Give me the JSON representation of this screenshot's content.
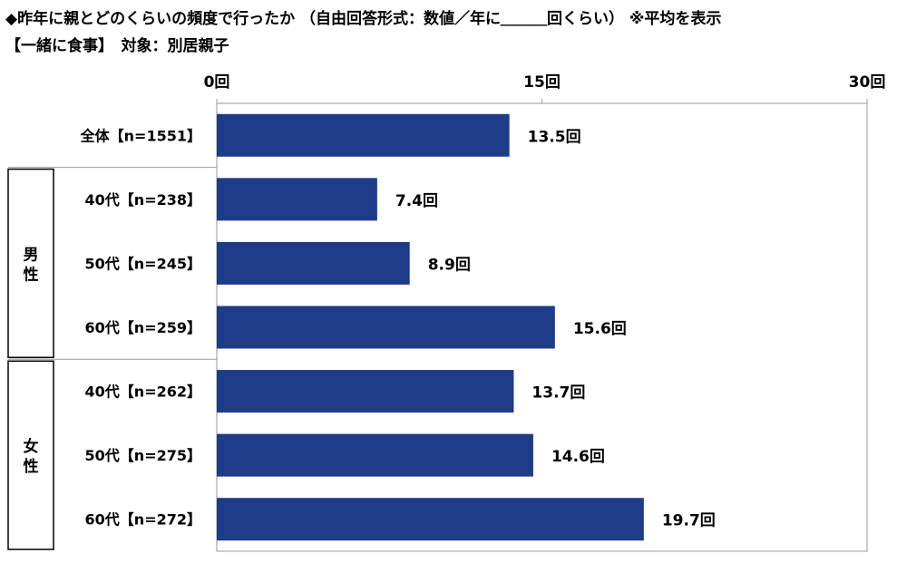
{
  "title": "◆昨年に親とどのくらいの頻度で行ったか （自由回答形式：数値／年に＿＿＿回くらい） ※平均を表示",
  "subtitle": "【一緒に食事】　対象：別居親子",
  "chart_data": {
    "type": "bar",
    "orientation": "horizontal",
    "xlim": [
      0,
      30
    ],
    "ticks": [
      "0回",
      "15回",
      "30回"
    ],
    "tick_values": [
      0,
      15,
      30
    ],
    "value_suffix": "回",
    "bar_color": "#1f3c88",
    "grid": false,
    "categories": [
      "全体【n=1551】",
      "40代【n=238】",
      "50代【n=245】",
      "60代【n=259】",
      "40代【n=262】",
      "50代【n=275】",
      "60代【n=272】"
    ],
    "values": [
      13.5,
      7.4,
      8.9,
      15.6,
      13.7,
      14.6,
      19.7
    ],
    "value_labels": [
      "13.5回",
      "7.4回",
      "8.9回",
      "15.6回",
      "13.7回",
      "14.6回",
      "19.7回"
    ],
    "groups": [
      {
        "label": "男性",
        "members": [
          1,
          2,
          3
        ]
      },
      {
        "label": "女性",
        "members": [
          4,
          5,
          6
        ]
      }
    ]
  }
}
